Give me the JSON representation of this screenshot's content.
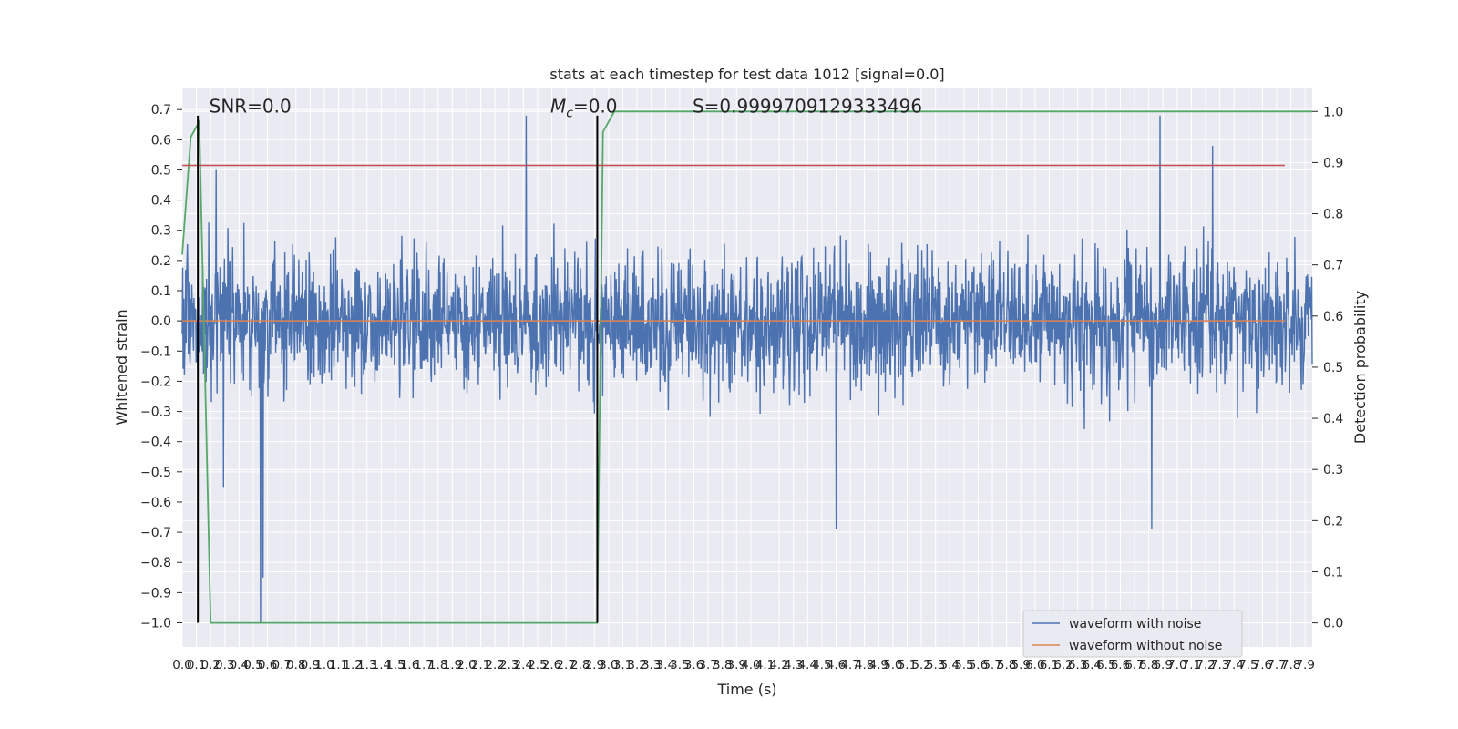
{
  "chart_data": {
    "type": "line",
    "title": "stats at each timestep for test data 1012 [signal=0.0]",
    "xlabel": "Time (s)",
    "ylabel": "Whitened strain",
    "y2label": "Detection probability",
    "xlim": [
      0.0,
      7.95
    ],
    "ylim": [
      -1.08,
      0.77
    ],
    "y2lim": [
      -0.047,
      1.045
    ],
    "xticks_step": 0.1,
    "xticks": [
      "0.0",
      "0.1",
      "0.2",
      "0.3",
      "0.4",
      "0.5",
      "0.6",
      "0.7",
      "0.8",
      "0.9",
      "1.0",
      "1.1",
      "1.2",
      "1.3",
      "1.4",
      "1.5",
      "1.6",
      "1.7",
      "1.8",
      "1.9",
      "2.0",
      "2.1",
      "2.2",
      "2.3",
      "2.4",
      "2.5",
      "2.6",
      "2.7",
      "2.8",
      "2.9",
      "3.0",
      "3.1",
      "3.2",
      "3.3",
      "3.4",
      "3.5",
      "3.6",
      "3.7",
      "3.8",
      "3.9",
      "4.0",
      "4.1",
      "4.2",
      "4.3",
      "4.4",
      "4.5",
      "4.6",
      "4.7",
      "4.8",
      "4.9",
      "5.0",
      "5.1",
      "5.2",
      "5.3",
      "5.4",
      "5.5",
      "5.6",
      "5.7",
      "5.8",
      "5.9",
      "6.0",
      "6.1",
      "6.2",
      "6.3",
      "6.4",
      "6.5",
      "6.6",
      "6.7",
      "6.8",
      "6.9",
      "7.0",
      "7.1",
      "7.2",
      "7.3",
      "7.4",
      "7.5",
      "7.6",
      "7.7",
      "7.8",
      "7.9"
    ],
    "yticks": [
      "0.7",
      "0.6",
      "0.5",
      "0.4",
      "0.3",
      "0.2",
      "0.1",
      "0.0",
      "−0.1",
      "−0.2",
      "−0.3",
      "−0.4",
      "−0.5",
      "−0.6",
      "−0.7",
      "−0.8",
      "−0.9",
      "−1.0"
    ],
    "ytick_values": [
      0.7,
      0.6,
      0.5,
      0.4,
      0.3,
      0.2,
      0.1,
      0.0,
      -0.1,
      -0.2,
      -0.3,
      -0.4,
      -0.5,
      -0.6,
      -0.7,
      -0.8,
      -0.9,
      -1.0
    ],
    "y2ticks": [
      "1.0",
      "0.9",
      "0.8",
      "0.7",
      "0.6",
      "0.5",
      "0.4",
      "0.3",
      "0.2",
      "0.1",
      "0.0"
    ],
    "y2tick_values": [
      1.0,
      0.9,
      0.8,
      0.7,
      0.6,
      0.5,
      0.4,
      0.3,
      0.2,
      0.1,
      0.0
    ],
    "grid": true,
    "legend_position": "lower-right",
    "annotations": [
      {
        "text": "SNR=0.0",
        "x": 0.19,
        "y": 0.69
      },
      {
        "text": "M",
        "sub": "c",
        "suffix": "=0.0",
        "x": 2.59,
        "y": 0.69
      },
      {
        "text": "S=0.9999709129333496",
        "x": 3.59,
        "y": 0.69
      }
    ],
    "series": [
      {
        "name": "waveform with noise",
        "color": "#4c72b0",
        "kind": "noise",
        "sigma": 0.12,
        "seed": 1012,
        "spikes": [
          [
            0.55,
            -1.0
          ],
          [
            0.57,
            -0.85
          ],
          [
            2.42,
            0.68
          ],
          [
            4.6,
            -0.69
          ],
          [
            6.88,
            0.68
          ],
          [
            7.25,
            0.58
          ],
          [
            6.82,
            -0.69
          ],
          [
            0.29,
            -0.55
          ],
          [
            0.24,
            0.5
          ]
        ]
      },
      {
        "name": "waveform without noise",
        "color": "#dd8452",
        "kind": "flat",
        "value": 0.0
      },
      {
        "name": "",
        "color": "#55a868",
        "axis": "y2",
        "kind": "line",
        "x": [
          0.0,
          0.06,
          0.12,
          0.2,
          0.26,
          0.3,
          2.88,
          2.92,
          2.96,
          3.04,
          7.95
        ],
        "y": [
          0.72,
          0.95,
          0.98,
          0.0,
          0.0,
          0.0,
          0.0,
          0.0,
          0.96,
          1.0,
          1.0
        ]
      },
      {
        "name": "",
        "color": "#c44e52",
        "kind": "hline",
        "value": 0.515
      },
      {
        "name": "",
        "color": "#000000",
        "kind": "vline",
        "x": 0.11,
        "y0": -1.0,
        "y1": 0.68
      },
      {
        "name": "",
        "color": "#000000",
        "kind": "vline",
        "x": 2.92,
        "y0": -1.0,
        "y1": 0.68
      }
    ]
  },
  "legend": {
    "items": [
      "waveform with noise",
      "waveform without noise"
    ]
  }
}
